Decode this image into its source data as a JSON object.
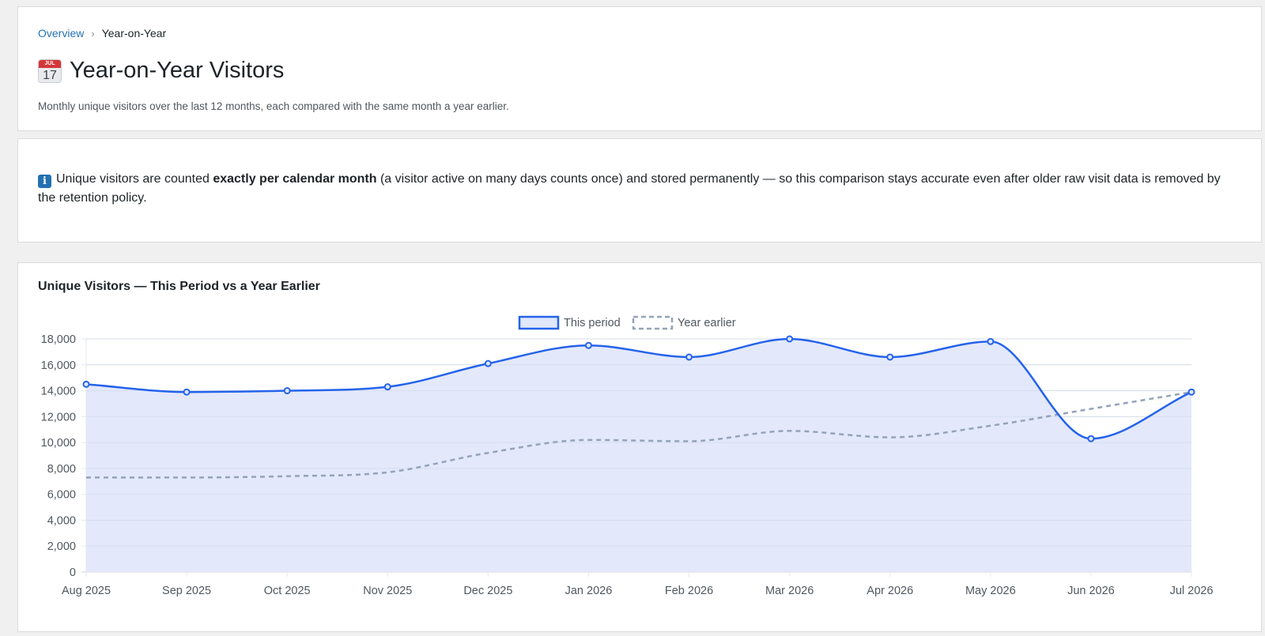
{
  "breadcrumb": {
    "root": "Overview",
    "separator": "›",
    "current": "Year-on-Year"
  },
  "header": {
    "icon": "calendar-icon",
    "icon_month": "JUL",
    "icon_day": "17",
    "title": "Year-on-Year Visitors",
    "subtitle": "Monthly unique visitors over the last 12 months, each compared with the same month a year earlier."
  },
  "info": {
    "icon": "info-icon",
    "icon_glyph": "i",
    "text_before": "Unique visitors are counted ",
    "text_bold": "exactly per calendar month",
    "text_after": " (a visitor active on many days counts once) and stored permanently — so this comparison stays accurate even after older raw visit data is removed by the retention policy."
  },
  "chart": {
    "title": "Unique Visitors — This Period vs a Year Earlier"
  },
  "chart_data": {
    "type": "line",
    "title": "Unique Visitors — This Period vs a Year Earlier",
    "categories": [
      "Aug 2025",
      "Sep 2025",
      "Oct 2025",
      "Nov 2025",
      "Dec 2025",
      "Jan 2026",
      "Feb 2026",
      "Mar 2026",
      "Apr 2026",
      "May 2026",
      "Jun 2026",
      "Jul 2026"
    ],
    "ylim": [
      0,
      18000
    ],
    "yticks": [
      0,
      2000,
      4000,
      6000,
      8000,
      10000,
      12000,
      14000,
      16000,
      18000
    ],
    "grid": true,
    "legend_position": "top-center",
    "series": [
      {
        "name": "This period",
        "values": [
          14500,
          13900,
          14000,
          14300,
          16100,
          17500,
          16600,
          18000,
          16600,
          17800,
          10300,
          13900
        ],
        "color": "#2563eb",
        "fill": "#e1e8fb",
        "style": "solid",
        "markers": true
      },
      {
        "name": "Year earlier",
        "values": [
          7300,
          7300,
          7400,
          7700,
          9200,
          10200,
          10100,
          10900,
          10400,
          11300,
          12600,
          13900
        ],
        "color": "#94a3b8",
        "style": "dashed",
        "markers": false
      }
    ]
  }
}
